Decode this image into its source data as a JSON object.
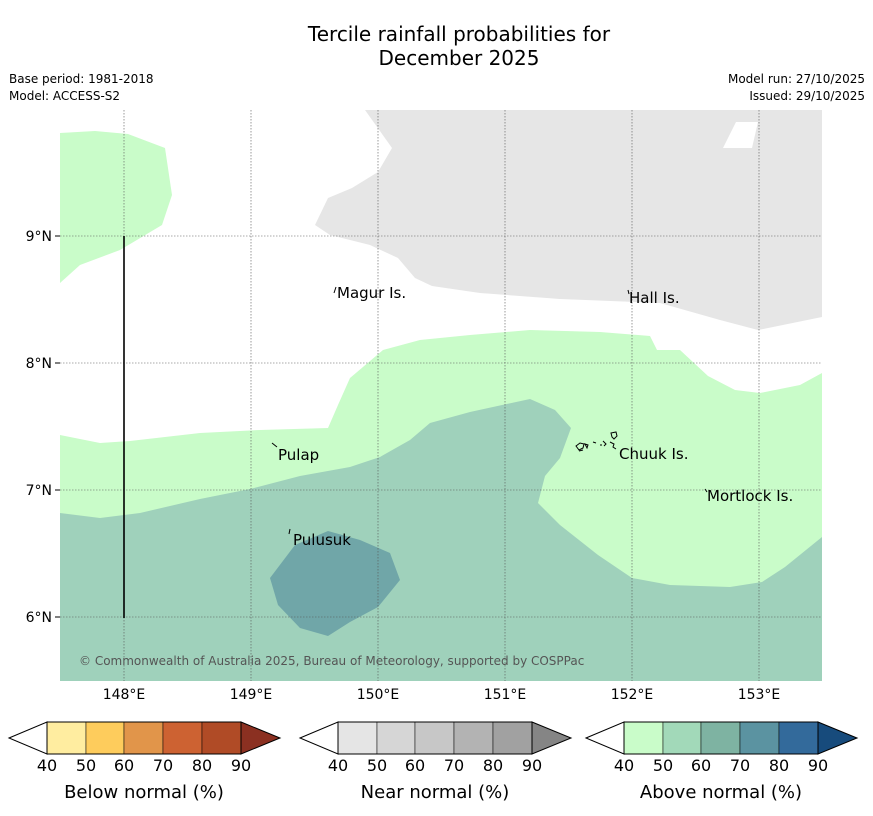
{
  "title_line1": "Tercile rainfall probabilities for",
  "title_line2": "December 2025",
  "base_period": "Base period: 1981-2018",
  "model": "Model: ACCESS-S2",
  "model_run": "Model run: 27/10/2025",
  "issued": "Issued: 29/10/2025",
  "copyright": "© Commonwealth of Australia 2025, Bureau of Meteorology, supported by COSPPac",
  "map": {
    "lat_labels": [
      "9°N",
      "8°N",
      "7°N",
      "6°N"
    ],
    "lon_labels": [
      "148°E",
      "149°E",
      "150°E",
      "151°E",
      "152°E",
      "153°E"
    ],
    "places": [
      "Magur Is.",
      "Hall Is.",
      "Pulap",
      "Chuuk Is.",
      "Mortlock Is.",
      "Pulusuk"
    ]
  },
  "legends": [
    {
      "label": "Below normal (%)",
      "ticks": [
        "40",
        "50",
        "60",
        "70",
        "80",
        "90"
      ],
      "colors": [
        "#ffffff",
        "#ffeda0",
        "#fecc5c",
        "#e1954a",
        "#cd6232",
        "#b04b26",
        "#8b3021"
      ]
    },
    {
      "label": "Near normal (%)",
      "ticks": [
        "40",
        "50",
        "60",
        "70",
        "80",
        "90"
      ],
      "colors": [
        "#ffffff",
        "#e5e5e5",
        "#d6d6d6",
        "#c7c7c7",
        "#b3b3b3",
        "#a1a1a1",
        "#858585"
      ]
    },
    {
      "label": "Above normal (%)",
      "ticks": [
        "40",
        "50",
        "60",
        "70",
        "80",
        "90"
      ],
      "colors": [
        "#ffffff",
        "#c9fcc9",
        "#a2d9b9",
        "#7eb3a2",
        "#5b93a1",
        "#336a9b",
        "#174b7c"
      ]
    }
  ],
  "colors": {
    "near_normal_50": "#e6e6e6",
    "above_50": "#c9fcc9",
    "above_60": "#9fd1bb",
    "above_70": "#70a6a8"
  }
}
